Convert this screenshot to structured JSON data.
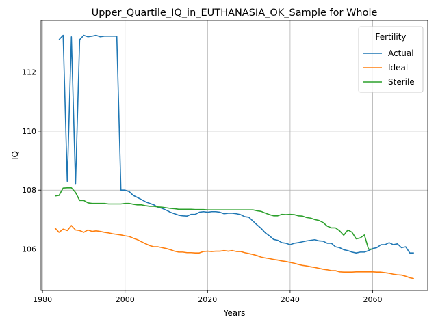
{
  "chart_data": {
    "type": "line",
    "title": "Upper_Quartile_IQ_in_EUTHANASIA_OK_Sample for Whole",
    "xlabel": "Years",
    "ylabel": "IQ",
    "xlim": [
      1979.65,
      2073.35
    ],
    "ylim": [
      104.6,
      113.75
    ],
    "xticks": [
      1980,
      2000,
      2020,
      2040,
      2060
    ],
    "yticks": [
      106,
      108,
      110,
      112
    ],
    "grid": true,
    "legend": {
      "title": "Fertility",
      "position": "upper right"
    },
    "x": [
      1983,
      1984,
      1985,
      1986,
      1987,
      1988,
      1989,
      1990,
      1991,
      1992,
      1993,
      1994,
      1995,
      1996,
      1997,
      1998,
      1999,
      2000,
      2001,
      2002,
      2003,
      2004,
      2005,
      2006,
      2007,
      2008,
      2009,
      2010,
      2011,
      2012,
      2013,
      2014,
      2015,
      2016,
      2017,
      2018,
      2019,
      2020,
      2021,
      2022,
      2023,
      2024,
      2025,
      2026,
      2027,
      2028,
      2029,
      2030,
      2031,
      2032,
      2033,
      2034,
      2035,
      2036,
      2037,
      2038,
      2039,
      2040,
      2041,
      2042,
      2043,
      2044,
      2045,
      2046,
      2047,
      2048,
      2049,
      2050,
      2051,
      2052,
      2053,
      2054,
      2055,
      2056,
      2057,
      2058,
      2059,
      2060,
      2061,
      2062,
      2063,
      2064,
      2065,
      2066,
      2067,
      2068,
      2069,
      2070
    ],
    "series": [
      {
        "name": "Actual",
        "color": "#1f77b4",
        "values": [
          null,
          113.1,
          113.25,
          108.3,
          113.2,
          108.2,
          113.1,
          113.25,
          113.2,
          113.22,
          113.25,
          113.2,
          113.22,
          113.22,
          113.22,
          113.22,
          108.0,
          108.0,
          107.95,
          107.82,
          107.75,
          107.68,
          107.6,
          107.55,
          107.5,
          107.42,
          107.38,
          107.32,
          107.25,
          107.2,
          107.15,
          107.13,
          107.12,
          107.18,
          107.18,
          107.25,
          107.27,
          107.25,
          107.27,
          107.27,
          107.25,
          107.2,
          107.22,
          107.22,
          107.2,
          107.17,
          107.1,
          107.08,
          106.95,
          106.82,
          106.7,
          106.55,
          106.45,
          106.33,
          106.3,
          106.22,
          106.2,
          106.15,
          106.2,
          106.22,
          106.25,
          106.28,
          106.3,
          106.32,
          106.28,
          106.27,
          106.2,
          106.2,
          106.08,
          106.05,
          105.98,
          105.95,
          105.9,
          105.87,
          105.9,
          105.9,
          105.95,
          106.02,
          106.05,
          106.15,
          106.15,
          106.22,
          106.15,
          106.18,
          106.05,
          106.08,
          105.87,
          105.87
        ]
      },
      {
        "name": "Ideal",
        "color": "#ff7f0e",
        "values": [
          106.72,
          106.57,
          106.68,
          106.63,
          106.8,
          106.65,
          106.63,
          106.57,
          106.65,
          106.6,
          106.62,
          106.6,
          106.57,
          106.55,
          106.52,
          106.5,
          106.48,
          106.45,
          106.43,
          106.37,
          106.32,
          106.25,
          106.18,
          106.12,
          106.08,
          106.08,
          106.05,
          106.02,
          105.98,
          105.93,
          105.9,
          105.9,
          105.88,
          105.88,
          105.87,
          105.87,
          105.92,
          105.93,
          105.92,
          105.93,
          105.93,
          105.95,
          105.93,
          105.95,
          105.92,
          105.92,
          105.88,
          105.85,
          105.82,
          105.78,
          105.73,
          105.7,
          105.68,
          105.65,
          105.63,
          105.6,
          105.58,
          105.55,
          105.52,
          105.48,
          105.45,
          105.43,
          105.4,
          105.38,
          105.35,
          105.32,
          105.3,
          105.27,
          105.27,
          105.23,
          105.22,
          105.22,
          105.22,
          105.23,
          105.23,
          105.23,
          105.23,
          105.23,
          105.22,
          105.22,
          105.2,
          105.18,
          105.15,
          105.13,
          105.12,
          105.08,
          105.03,
          105.0
        ]
      },
      {
        "name": "Sterile",
        "color": "#2ca02c",
        "values": [
          107.8,
          107.82,
          108.07,
          108.08,
          108.08,
          107.92,
          107.65,
          107.65,
          107.57,
          107.55,
          107.55,
          107.55,
          107.55,
          107.53,
          107.53,
          107.53,
          107.53,
          107.55,
          107.55,
          107.52,
          107.5,
          107.5,
          107.47,
          107.45,
          107.45,
          107.43,
          107.42,
          107.4,
          107.38,
          107.37,
          107.35,
          107.35,
          107.35,
          107.35,
          107.34,
          107.34,
          107.34,
          107.33,
          107.33,
          107.33,
          107.33,
          107.33,
          107.33,
          107.33,
          107.33,
          107.33,
          107.33,
          107.33,
          107.33,
          107.3,
          107.28,
          107.22,
          107.17,
          107.13,
          107.13,
          107.18,
          107.17,
          107.18,
          107.17,
          107.13,
          107.12,
          107.07,
          107.05,
          107.0,
          106.97,
          106.9,
          106.78,
          106.72,
          106.72,
          106.62,
          106.47,
          106.65,
          106.57,
          106.35,
          106.38,
          106.48,
          106.0,
          106.0,
          null,
          null,
          null,
          null,
          null,
          null,
          null,
          null,
          null,
          null
        ]
      }
    ]
  }
}
